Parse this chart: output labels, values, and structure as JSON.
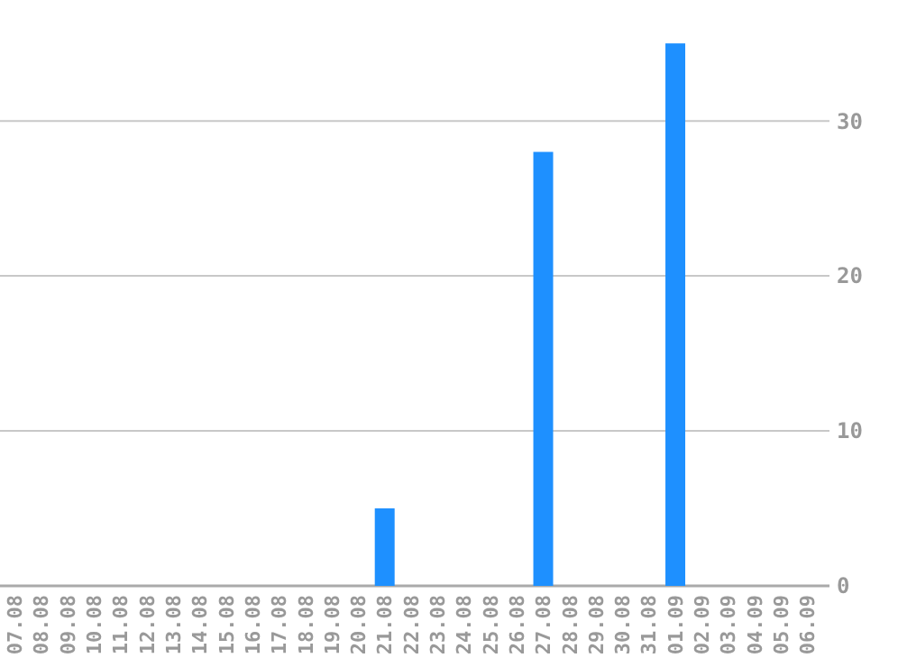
{
  "chart_data": {
    "type": "bar",
    "categories": [
      "07.08",
      "08.08",
      "09.08",
      "10.08",
      "11.08",
      "12.08",
      "13.08",
      "14.08",
      "15.08",
      "16.08",
      "17.08",
      "18.08",
      "19.08",
      "20.08",
      "21.08",
      "22.08",
      "23.08",
      "24.08",
      "25.08",
      "26.08",
      "27.08",
      "28.08",
      "29.08",
      "30.08",
      "31.08",
      "01.09",
      "02.09",
      "03.09",
      "04.09",
      "05.09",
      "06.09"
    ],
    "values": [
      0,
      0,
      0,
      0,
      0,
      0,
      0,
      0,
      0,
      0,
      0,
      0,
      0,
      0,
      5,
      0,
      0,
      0,
      0,
      0,
      28,
      0,
      0,
      0,
      0,
      35,
      0,
      0,
      0,
      0,
      0
    ],
    "color": "#1e90ff",
    "ylim": [
      0,
      37.8
    ],
    "yticks": [
      0,
      10,
      20,
      30
    ],
    "grid": "y"
  }
}
